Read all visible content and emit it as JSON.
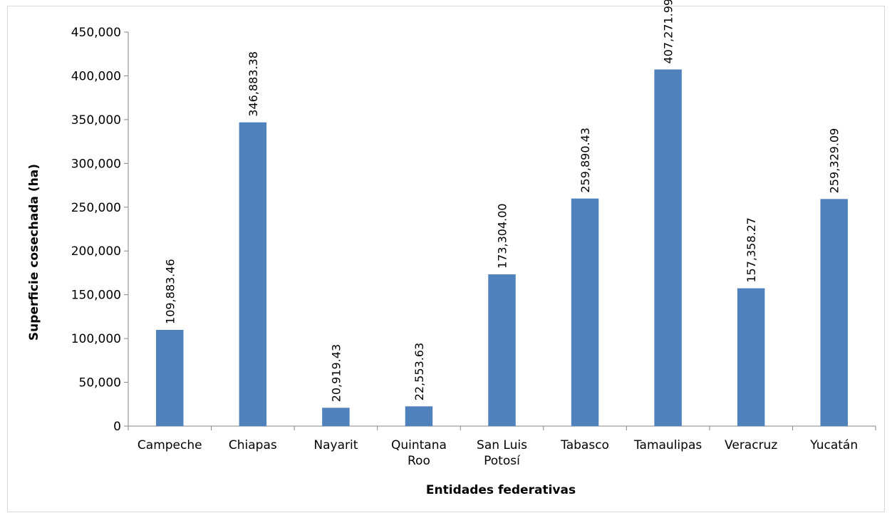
{
  "chart_data": {
    "type": "bar",
    "title": "",
    "xlabel": "Entidades federativas",
    "ylabel": "Superficie cosechada (ha)",
    "ylim": [
      0,
      450000
    ],
    "yticks": [
      0,
      50000,
      100000,
      150000,
      200000,
      250000,
      300000,
      350000,
      400000,
      450000
    ],
    "ytick_labels": [
      "0",
      "50,000",
      "100,000",
      "150,000",
      "200,000",
      "250,000",
      "300,000",
      "350,000",
      "400,000",
      "450,000"
    ],
    "categories": [
      "Campeche",
      "Chiapas",
      "Nayarit",
      "Quintana Roo",
      "San Luis Potosí",
      "Tabasco",
      "Tamaulipas",
      "Veracruz",
      "Yucatán"
    ],
    "category_lines": [
      [
        "Campeche"
      ],
      [
        "Chiapas"
      ],
      [
        "Nayarit"
      ],
      [
        "Quintana",
        "Roo"
      ],
      [
        "San Luis",
        "Potosí"
      ],
      [
        "Tabasco"
      ],
      [
        "Tamaulipas"
      ],
      [
        "Veracruz"
      ],
      [
        "Yucatán"
      ]
    ],
    "values": [
      109883.46,
      346883.38,
      20919.43,
      22553.63,
      173304.0,
      259890.43,
      407271.99,
      157358.27,
      259329.09
    ],
    "data_labels": [
      "109,883.46",
      "346,883.38",
      "20,919.43",
      "22,553.63",
      "173,304.00",
      "259,890.43",
      "407,271.99",
      "157,358.27",
      "259,329.09"
    ],
    "bar_color": "#4f81bd",
    "grid": false,
    "legend": "none"
  }
}
